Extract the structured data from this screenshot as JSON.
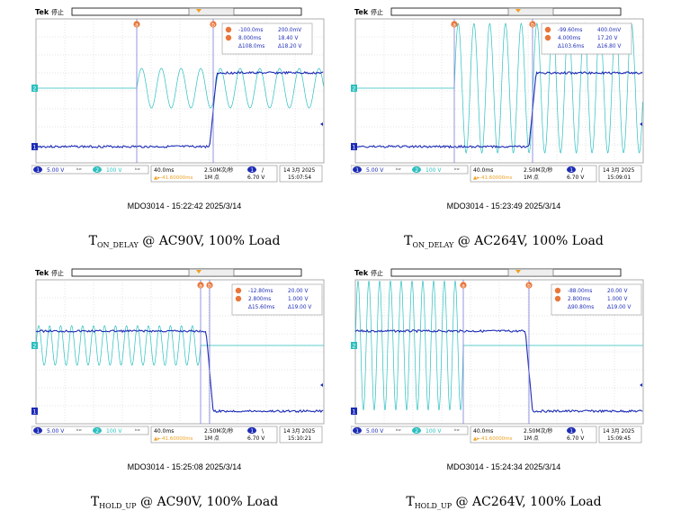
{
  "chart_data": [
    {
      "type": "line",
      "tek": "Tek",
      "status": "停止",
      "scope_model": "MDO3014",
      "caption_time": "15:22:42",
      "caption_date": "2025/3/14",
      "cursors": {
        "a": "-100.0ms",
        "a_val": "200.0mV",
        "b": "8.000ms",
        "b_val": "18.40 V",
        "delta": "Δ108.0ms",
        "delta_val": "Δ18.20 V"
      },
      "ch1_scale": "5.00 V",
      "ch2_scale": "100 V",
      "timebase": "40.0ms",
      "sample_rate": "2.50M次/秒",
      "record_length": "1M 点",
      "trigger_delay": "-41.60000ms",
      "trigger_level": "6.70 V",
      "trigger_slope": "/",
      "screen_date": "14 3月 2025",
      "screen_time": "15:07:54",
      "title_main": "T",
      "title_sub": "ON_DELAY",
      "title_rest": " @ AC90V, 100%  Load",
      "edge": "rise",
      "ac_amplitude": "small",
      "ac_cycles": 9.5
    },
    {
      "type": "line",
      "tek": "Tek",
      "status": "停止",
      "scope_model": "MDO3014",
      "caption_time": "15:23:49",
      "caption_date": "2025/3/14",
      "cursors": {
        "a": "-99.60ms",
        "a_val": "400.0mV",
        "b": "4.000ms",
        "b_val": "17.20 V",
        "delta": "Δ103.6ms",
        "delta_val": "Δ16.80 V"
      },
      "ch1_scale": "5.00 V",
      "ch2_scale": "100 V",
      "timebase": "40.0ms",
      "sample_rate": "2.50M次/秒",
      "record_length": "1M 点",
      "trigger_delay": "-41.60000ms",
      "trigger_level": "6.70 V",
      "trigger_slope": "/",
      "screen_date": "14 3月 2025",
      "screen_time": "15:09:01",
      "title_main": "T",
      "title_sub": "ON_DELAY",
      "title_rest": " @ AC264V, 100%  Load",
      "edge": "rise",
      "ac_amplitude": "large",
      "ac_cycles": 12
    },
    {
      "type": "line",
      "tek": "Tek",
      "status": "停止",
      "scope_model": "MDO3014",
      "caption_time": "15:25:08",
      "caption_date": "2025/3/14",
      "cursors": {
        "a": "-12.80ms",
        "a_val": "20.00 V",
        "b": "2.800ms",
        "b_val": "1.000 V",
        "delta": "Δ15.60ms",
        "delta_val": "Δ19.00 V"
      },
      "ch1_scale": "5.00 V",
      "ch2_scale": "100 V",
      "timebase": "40.0ms",
      "sample_rate": "2.50M次/秒",
      "record_length": "1M 点",
      "trigger_delay": "-41.60000ms",
      "trigger_level": "6.70 V",
      "trigger_slope": "\\",
      "screen_date": "14 3月 2025",
      "screen_time": "15:10:21",
      "title_main": "T",
      "title_sub": "HOLD_UP",
      "title_rest": " @ AC90V, 100%  Load",
      "edge": "fall",
      "ac_amplitude": "small",
      "ac_cycles": 15
    },
    {
      "type": "line",
      "tek": "Tek",
      "status": "停止",
      "scope_model": "MDO3014",
      "caption_time": "15:24:34",
      "caption_date": "2025/3/14",
      "cursors": {
        "a": "-88.00ms",
        "a_val": "20.00 V",
        "b": "2.800ms",
        "b_val": "1.000 V",
        "delta": "Δ90.80ms",
        "delta_val": "Δ19.00 V"
      },
      "ch1_scale": "5.00 V",
      "ch2_scale": "100 V",
      "timebase": "40.0ms",
      "sample_rate": "2.50M次/秒",
      "record_length": "1M 点",
      "trigger_delay": "-41.60000ms",
      "trigger_level": "6.70 V",
      "trigger_slope": "\\",
      "screen_date": "14 3月 2025",
      "screen_time": "15:09:45",
      "title_main": "T",
      "title_sub": "HOLD_UP",
      "title_rest": " @ AC264V, 100%  Load",
      "edge": "fall",
      "ac_amplitude": "large",
      "ac_cycles": 10
    }
  ],
  "colors": {
    "ch1": "#1d2cb5",
    "ch2": "#2bbfbf",
    "cursor": "#7a7ad8",
    "grid": "#c8c8c8",
    "cursor_badge": "#e8763a",
    "trigger": "#f0a020"
  }
}
